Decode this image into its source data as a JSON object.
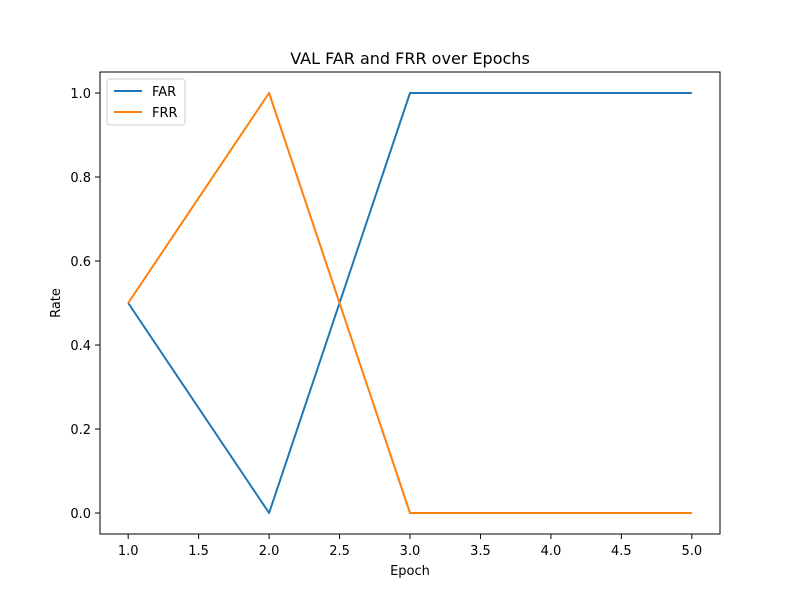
{
  "chart_data": {
    "type": "line",
    "title": "VAL FAR and FRR over Epochs",
    "xlabel": "Epoch",
    "ylabel": "Rate",
    "xlim": [
      0.8,
      5.2
    ],
    "ylim": [
      -0.05,
      1.05
    ],
    "x_ticks": [
      1.0,
      1.5,
      2.0,
      2.5,
      3.0,
      3.5,
      4.0,
      4.5,
      5.0
    ],
    "x_tick_labels": [
      "1.0",
      "1.5",
      "2.0",
      "2.5",
      "3.0",
      "3.5",
      "4.0",
      "4.5",
      "5.0"
    ],
    "y_ticks": [
      0.0,
      0.2,
      0.4,
      0.6,
      0.8,
      1.0
    ],
    "y_tick_labels": [
      "0.0",
      "0.2",
      "0.4",
      "0.6",
      "0.8",
      "1.0"
    ],
    "x": [
      1,
      2,
      3,
      4,
      5
    ],
    "series": [
      {
        "name": "FAR",
        "color": "#1f77b4",
        "values": [
          0.5,
          0.0,
          1.0,
          1.0,
          1.0
        ]
      },
      {
        "name": "FRR",
        "color": "#ff7f0e",
        "values": [
          0.5,
          1.0,
          0.0,
          0.0,
          0.0
        ]
      }
    ],
    "grid": false,
    "legend_position": "upper-left"
  }
}
